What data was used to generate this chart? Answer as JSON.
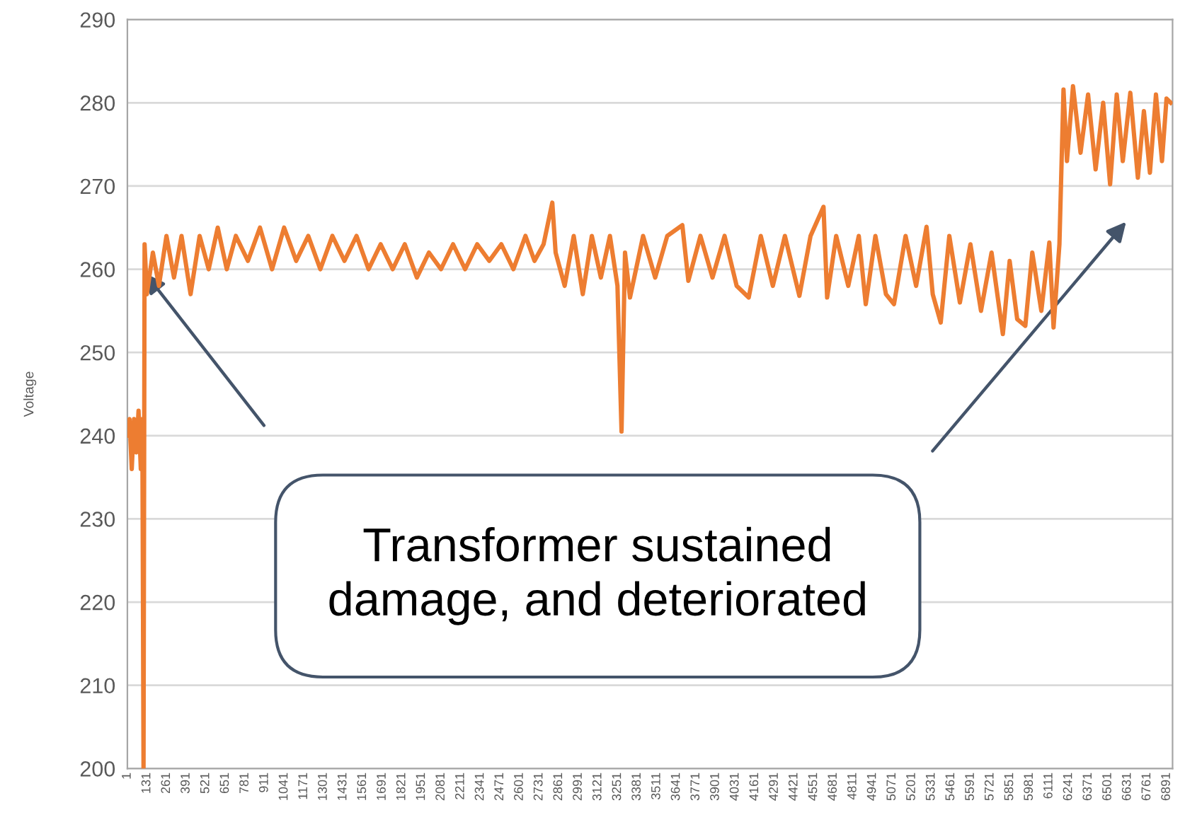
{
  "chart_data": {
    "type": "line",
    "ylabel": "Voltage",
    "annotations": [
      "Transformer sustained damage, and deteriorated"
    ],
    "xlim": [
      1,
      6930
    ],
    "ylim": [
      200,
      290
    ],
    "xticks": [
      1,
      131,
      261,
      391,
      521,
      651,
      781,
      911,
      1041,
      1171,
      1301,
      1431,
      1561,
      1691,
      1821,
      1951,
      2081,
      2211,
      2341,
      2471,
      2601,
      2731,
      2861,
      2991,
      3121,
      3251,
      3381,
      3511,
      3641,
      3771,
      3901,
      4031,
      4161,
      4291,
      4421,
      4551,
      4681,
      4811,
      4941,
      5071,
      5201,
      5331,
      5461,
      5591,
      5721,
      5851,
      5981,
      6111,
      6241,
      6371,
      6501,
      6631,
      6761,
      6891
    ],
    "yticks": [
      200,
      210,
      220,
      230,
      240,
      250,
      260,
      270,
      280,
      290
    ],
    "grid": "y",
    "legend": false,
    "marker": "none",
    "line_style": "solid",
    "series": [
      {
        "color": "#ed7d31",
        "x": [
          1,
          15,
          30,
          45,
          60,
          75,
          90,
          100,
          108,
          115,
          130,
          170,
          210,
          260,
          310,
          360,
          420,
          480,
          540,
          600,
          660,
          720,
          800,
          880,
          960,
          1040,
          1120,
          1200,
          1280,
          1360,
          1440,
          1520,
          1600,
          1680,
          1760,
          1840,
          1920,
          2000,
          2080,
          2160,
          2240,
          2320,
          2400,
          2480,
          2560,
          2640,
          2700,
          2760,
          2818,
          2840,
          2900,
          2960,
          3020,
          3080,
          3140,
          3200,
          3250,
          3277,
          3300,
          3333,
          3420,
          3500,
          3580,
          3680,
          3720,
          3800,
          3880,
          3960,
          4040,
          4120,
          4200,
          4280,
          4360,
          4456,
          4530,
          4616,
          4640,
          4700,
          4780,
          4850,
          4896,
          4960,
          5030,
          5083,
          5160,
          5230,
          5299,
          5340,
          5393,
          5450,
          5520,
          5590,
          5660,
          5730,
          5805,
          5850,
          5900,
          5954,
          6000,
          6060,
          6113,
          6141,
          6180,
          6207,
          6230,
          6270,
          6320,
          6370,
          6420,
          6470,
          6516,
          6560,
          6600,
          6650,
          6700,
          6740,
          6780,
          6820,
          6860,
          6890,
          6918
        ],
        "values": [
          240,
          242,
          236,
          242,
          238,
          243,
          236,
          242,
          200,
          263,
          257,
          262,
          258,
          264,
          259,
          264,
          257,
          264,
          260,
          265,
          260,
          264,
          261,
          265,
          260,
          265,
          261,
          264,
          260,
          264,
          261,
          264,
          260,
          263,
          260,
          263,
          259,
          262,
          260,
          263,
          260,
          263,
          261,
          263,
          260,
          264,
          261,
          263,
          268,
          262,
          258,
          264,
          257,
          264,
          259,
          264,
          258,
          240.5,
          262,
          256.6,
          264,
          259,
          264,
          265.3,
          258.6,
          264,
          259,
          264,
          258,
          256.6,
          264,
          258,
          264,
          256.8,
          264,
          267.5,
          256.6,
          264,
          258,
          264,
          255.8,
          264,
          257,
          255.8,
          264,
          258,
          265.1,
          257,
          253.6,
          264,
          256,
          263,
          255,
          262,
          252.2,
          261,
          254,
          253.2,
          262,
          255,
          263.2,
          253,
          263,
          281.6,
          273,
          282,
          274,
          281,
          272,
          280,
          270.2,
          281,
          273,
          281.2,
          271,
          279,
          271.6,
          281,
          273,
          280.5,
          280
        ]
      }
    ]
  }
}
